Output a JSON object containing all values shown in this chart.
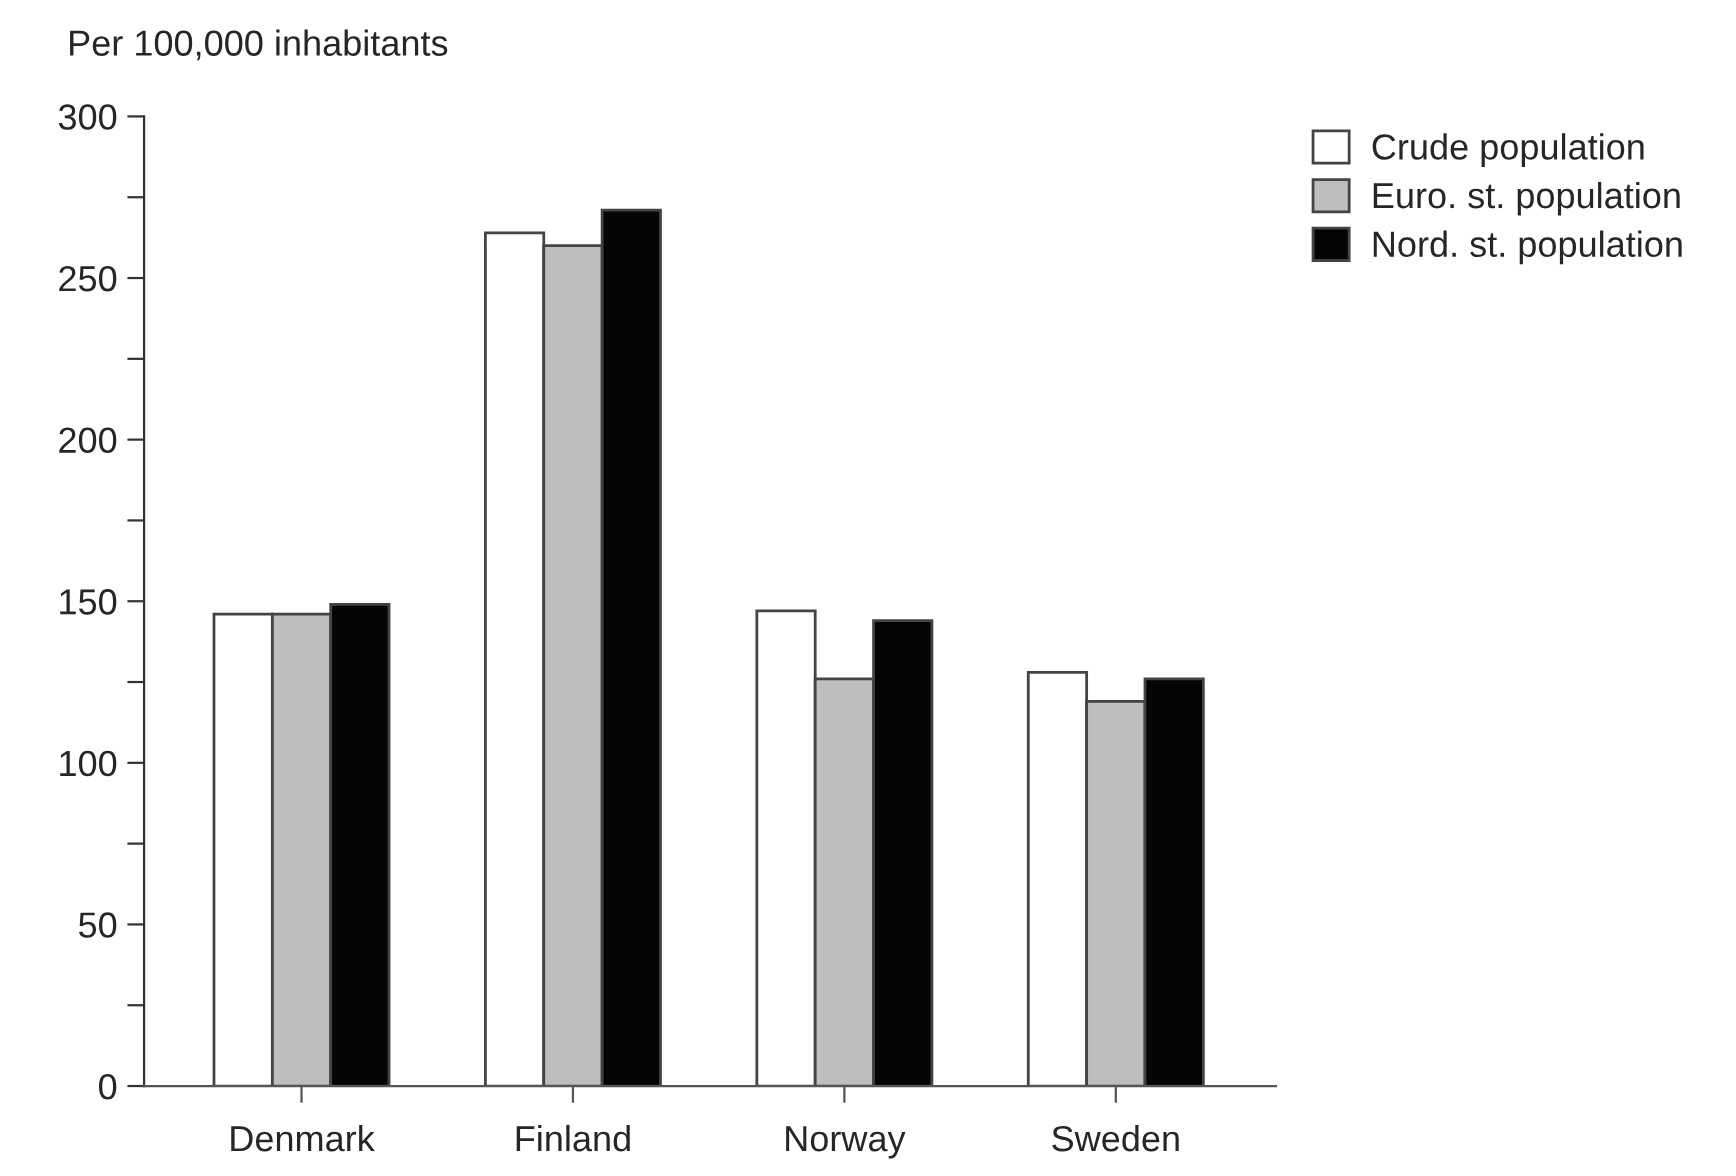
{
  "chart_data": {
    "type": "bar",
    "ylabel": "Per 100,000 inhabitants",
    "categories": [
      "Denmark",
      "Finland",
      "Norway",
      "Sweden"
    ],
    "series": [
      {
        "name": "Crude population",
        "color": "#ffffff",
        "values": [
          146,
          264,
          147,
          128
        ]
      },
      {
        "name": "Euro. st. population",
        "color": "#bebebe",
        "values": [
          146,
          260,
          126,
          119
        ]
      },
      {
        "name": "Nord. st. population",
        "color": "#050505",
        "values": [
          149,
          271,
          144,
          126
        ]
      }
    ],
    "ylim": [
      0,
      300
    ],
    "yticks": [
      0,
      {
        "value": 25,
        "label": null
      },
      50,
      {
        "value": 75,
        "label": null
      },
      100,
      {
        "value": 125,
        "label": null
      },
      150,
      {
        "value": 175,
        "label": null
      },
      200,
      {
        "value": 225,
        "label": null
      },
      250,
      {
        "value": 275,
        "label": null
      },
      300
    ],
    "grid": false,
    "legend": "top right"
  }
}
